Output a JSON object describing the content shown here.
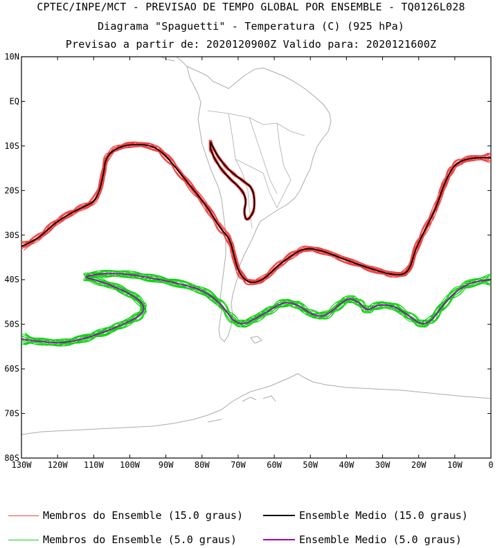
{
  "titles": {
    "line1": "CPTEC/INPE/MCT - PREVISAO DE TEMPO GLOBAL POR ENSEMBLE - TQ0126L028",
    "line2": "Diagrama \"Spaguetti\" - Temperatura (C) (925 hPa)",
    "line3": "Previsao a partir de: 2020120900Z  Valido para: 2020121600Z"
  },
  "axes": {
    "lat_labels": [
      "10N",
      "EQ",
      "10S",
      "20S",
      "30S",
      "40S",
      "50S",
      "60S",
      "70S",
      "80S"
    ],
    "lon_labels": [
      "130W",
      "120W",
      "110W",
      "100W",
      "90W",
      "80W",
      "70W",
      "60W",
      "50W",
      "40W",
      "30W",
      "20W",
      "10W",
      "0"
    ],
    "lat_range": [
      10,
      -80
    ],
    "lon_range": [
      -130,
      0
    ]
  },
  "colors": {
    "members_15": "#f04040",
    "mean_15": "#000000",
    "members_5": "#10d010",
    "mean_5": "#a000c0",
    "coastline": "#aaaaaa"
  },
  "legend": {
    "members_15": "Membros do Ensemble (15.0 graus)",
    "mean_15": "Ensemble Medio (15.0 graus)",
    "members_5": "Membros do Ensemble (5.0 graus)",
    "mean_5": "Ensemble Medio (5.0 graus)"
  }
}
